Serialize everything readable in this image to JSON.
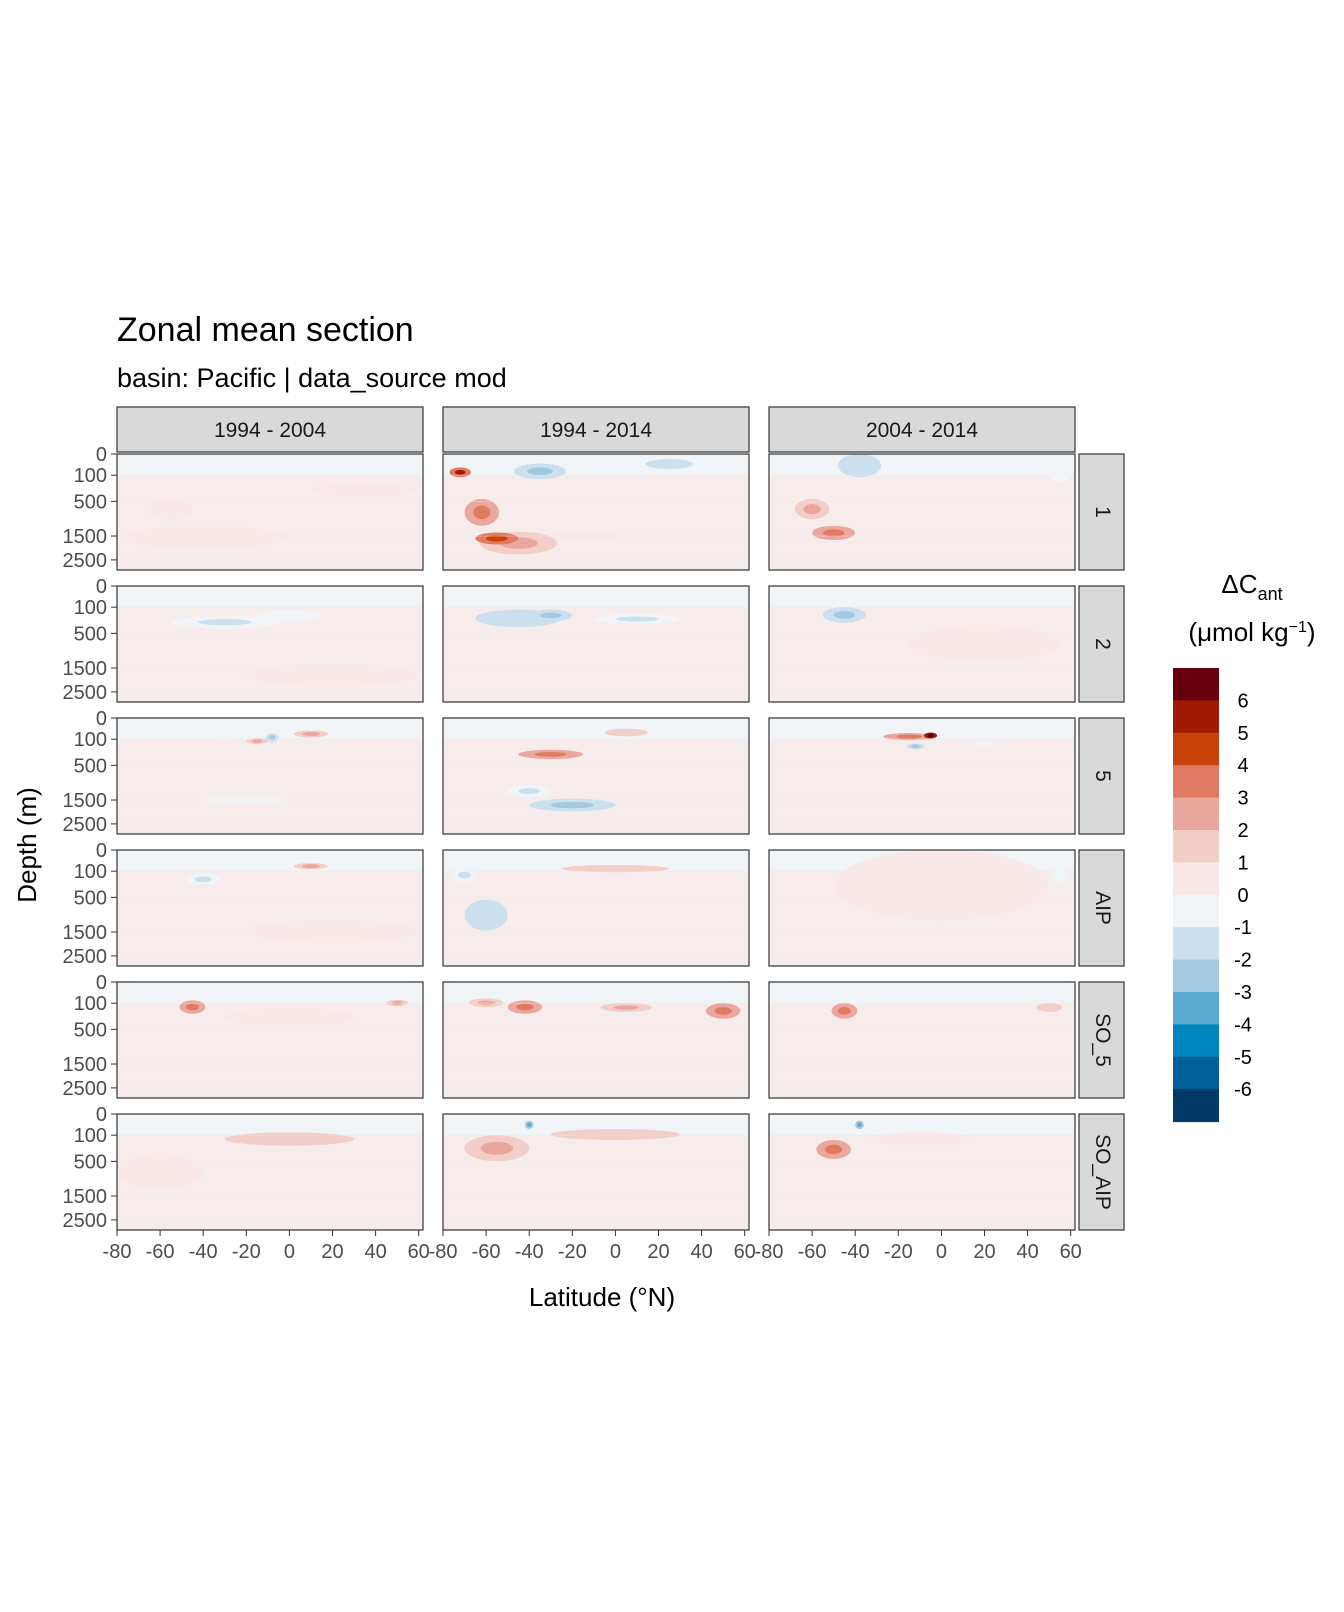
{
  "chart_data": {
    "type": "heatmap",
    "title": "Zonal mean section",
    "subtitle": "basin: Pacific | data_source mod",
    "xlabel": "Latitude (°N)",
    "ylabel": "Depth (m)",
    "x_ticks": [
      -80,
      -60,
      -40,
      -20,
      0,
      20,
      40,
      60
    ],
    "xlim": [
      -80,
      62
    ],
    "y_ticks": [
      0,
      100,
      500,
      1500,
      2500
    ],
    "ylim": [
      0,
      3000
    ],
    "y_scale": "sqrt",
    "columns": [
      "1994 - 2004",
      "1994 - 2014",
      "2004 - 2014"
    ],
    "rows": [
      "1",
      "2",
      "5",
      "AIP",
      "SO_5",
      "SO_AIP"
    ],
    "legend": {
      "title_main": "ΔC",
      "title_sub": "ant",
      "units_main": "(μmol kg",
      "units_sup": "−1",
      "units_close": ")",
      "labels": [
        "6",
        "5",
        "4",
        "3",
        "2",
        "1",
        "0",
        "-1",
        "-2",
        "-3",
        "-4",
        "-5",
        "-6"
      ],
      "colors": [
        "#67000d",
        "#a31a04",
        "#c84309",
        "#e07a63",
        "#eaa79e",
        "#f3cec9",
        "#f8e9e8",
        "#f0f4f7",
        "#ccdfee",
        "#a3c9e1",
        "#5aaad0",
        "#0086bf",
        "#005e99",
        "#003966"
      ],
      "placement": "right"
    },
    "background_color": "#f0f4f7",
    "panels": [
      {
        "row": "1",
        "col": "1994 - 2004",
        "background": 0.3,
        "features": [
          {
            "lat": -40,
            "depth": 1600,
            "v": 0.6,
            "w": 36,
            "h": 900
          },
          {
            "lat": -20,
            "depth": 1500,
            "v": 0.45,
            "w": 30,
            "h": 200
          },
          {
            "lat": -55,
            "depth": 700,
            "v": 0.5,
            "w": 10,
            "h": 500
          },
          {
            "lat": 10,
            "depth": 30,
            "v": -0.6,
            "w": 6,
            "h": 60
          },
          {
            "lat": 35,
            "depth": 300,
            "v": 0.3,
            "w": 25,
            "h": 200
          }
        ]
      },
      {
        "row": "1",
        "col": "1994 - 2014",
        "background": 0.3,
        "features": [
          {
            "lat": -72,
            "depth": 80,
            "v": 3.5,
            "w": 5,
            "h": 80
          },
          {
            "lat": -55,
            "depth": 1600,
            "v": 3.0,
            "w": 10,
            "h": 450
          },
          {
            "lat": -62,
            "depth": 800,
            "v": 2.0,
            "w": 8,
            "h": 700
          },
          {
            "lat": -45,
            "depth": 1800,
            "v": 1.8,
            "w": 18,
            "h": 900
          },
          {
            "lat": -20,
            "depth": 1500,
            "v": 0.8,
            "w": 30,
            "h": 200
          },
          {
            "lat": -35,
            "depth": 80,
            "v": -1.8,
            "w": 12,
            "h": 120
          },
          {
            "lat": 25,
            "depth": 40,
            "v": -1.0,
            "w": 22,
            "h": 100
          }
        ]
      },
      {
        "row": "1",
        "col": "2004 - 2014",
        "background": 0.3,
        "features": [
          {
            "lat": -50,
            "depth": 1400,
            "v": 2.0,
            "w": 10,
            "h": 500
          },
          {
            "lat": -60,
            "depth": 700,
            "v": 1.5,
            "w": 8,
            "h": 500
          },
          {
            "lat": -38,
            "depth": 60,
            "v": -1.2,
            "w": 10,
            "h": 120
          },
          {
            "lat": 55,
            "depth": 80,
            "v": -0.8,
            "w": 6,
            "h": 200
          }
        ]
      },
      {
        "row": "2",
        "col": "1994 - 2004",
        "background": 0.3,
        "features": [
          {
            "lat": -30,
            "depth": 300,
            "v": -1.0,
            "w": 25,
            "h": 200
          },
          {
            "lat": 0,
            "depth": 200,
            "v": -0.8,
            "w": 15,
            "h": 150
          },
          {
            "lat": 20,
            "depth": 1800,
            "v": 0.3,
            "w": 40,
            "h": 900
          }
        ]
      },
      {
        "row": "2",
        "col": "1994 - 2014",
        "background": 0.3,
        "features": [
          {
            "lat": -30,
            "depth": 200,
            "v": -2.0,
            "w": 10,
            "h": 150
          },
          {
            "lat": -45,
            "depth": 250,
            "v": -1.2,
            "w": 20,
            "h": 250
          },
          {
            "lat": 10,
            "depth": 250,
            "v": -1.0,
            "w": 20,
            "h": 150
          }
        ]
      },
      {
        "row": "2",
        "col": "2004 - 2014",
        "background": 0.3,
        "features": [
          {
            "lat": -45,
            "depth": 200,
            "v": -1.5,
            "w": 10,
            "h": 200
          },
          {
            "lat": 20,
            "depth": 800,
            "v": 0.4,
            "w": 35,
            "h": 900
          }
        ]
      },
      {
        "row": "5",
        "col": "1994 - 2004",
        "background": 0.3,
        "features": [
          {
            "lat": -8,
            "depth": 90,
            "v": -1.8,
            "w": 3,
            "h": 80
          },
          {
            "lat": -15,
            "depth": 120,
            "v": 1.5,
            "w": 5,
            "h": 60
          },
          {
            "lat": 10,
            "depth": 60,
            "v": 1.5,
            "w": 8,
            "h": 50
          },
          {
            "lat": -20,
            "depth": 1500,
            "v": -0.9,
            "w": 20,
            "h": 60
          },
          {
            "lat": -30,
            "depth": 80,
            "v": -0.8,
            "w": 5,
            "h": 40
          }
        ]
      },
      {
        "row": "5",
        "col": "1994 - 2014",
        "background": 0.3,
        "features": [
          {
            "lat": -30,
            "depth": 300,
            "v": 2.0,
            "w": 15,
            "h": 150
          },
          {
            "lat": -20,
            "depth": 1700,
            "v": -1.5,
            "w": 20,
            "h": 500
          },
          {
            "lat": -40,
            "depth": 1200,
            "v": -1.0,
            "w": 10,
            "h": 400
          },
          {
            "lat": 5,
            "depth": 50,
            "v": 1.2,
            "w": 10,
            "h": 50
          }
        ]
      },
      {
        "row": "5",
        "col": "2004 - 2014",
        "background": 0.3,
        "features": [
          {
            "lat": -5,
            "depth": 70,
            "v": 5.0,
            "w": 3,
            "h": 40
          },
          {
            "lat": -15,
            "depth": 80,
            "v": 2.0,
            "w": 12,
            "h": 60
          },
          {
            "lat": -12,
            "depth": 180,
            "v": -2.0,
            "w": 4,
            "h": 50
          },
          {
            "lat": 20,
            "depth": 150,
            "v": -0.8,
            "w": 5,
            "h": 50
          }
        ]
      },
      {
        "row": "AIP",
        "col": "1994 - 2004",
        "background": 0.25,
        "features": [
          {
            "lat": -40,
            "depth": 200,
            "v": -1.0,
            "w": 8,
            "h": 150
          },
          {
            "lat": 10,
            "depth": 60,
            "v": 1.5,
            "w": 8,
            "h": 40
          },
          {
            "lat": 20,
            "depth": 1500,
            "v": 0.3,
            "w": 40,
            "h": 800
          }
        ]
      },
      {
        "row": "AIP",
        "col": "1994 - 2014",
        "background": 0.3,
        "features": [
          {
            "lat": -60,
            "depth": 1000,
            "v": -1.2,
            "w": 10,
            "h": 900
          },
          {
            "lat": 0,
            "depth": 80,
            "v": 1.2,
            "w": 25,
            "h": 60
          },
          {
            "lat": -70,
            "depth": 150,
            "v": -1.0,
            "w": 6,
            "h": 150
          }
        ]
      },
      {
        "row": "AIP",
        "col": "2004 - 2014",
        "background": 0.3,
        "features": [
          {
            "lat": 0,
            "depth": 500,
            "v": 0.5,
            "w": 50,
            "h": 1200
          },
          {
            "lat": 55,
            "depth": 150,
            "v": -0.8,
            "w": 4,
            "h": 200
          }
        ]
      },
      {
        "row": "SO_5",
        "col": "1994 - 2004",
        "background": 0.3,
        "features": [
          {
            "lat": -45,
            "depth": 150,
            "v": 2.0,
            "w": 6,
            "h": 150
          },
          {
            "lat": 50,
            "depth": 100,
            "v": 1.5,
            "w": 5,
            "h": 60
          },
          {
            "lat": 0,
            "depth": 300,
            "v": 0.6,
            "w": 30,
            "h": 300
          }
        ]
      },
      {
        "row": "SO_5",
        "col": "1994 - 2014",
        "background": 0.3,
        "features": [
          {
            "lat": -42,
            "depth": 150,
            "v": 2.5,
            "w": 8,
            "h": 150
          },
          {
            "lat": 5,
            "depth": 150,
            "v": 1.5,
            "w": 12,
            "h": 100
          },
          {
            "lat": 50,
            "depth": 200,
            "v": 2.0,
            "w": 8,
            "h": 200
          },
          {
            "lat": -60,
            "depth": 100,
            "v": 1.5,
            "w": 8,
            "h": 80
          }
        ]
      },
      {
        "row": "SO_5",
        "col": "2004 - 2014",
        "background": 0.3,
        "features": [
          {
            "lat": -45,
            "depth": 200,
            "v": 2.0,
            "w": 6,
            "h": 200
          },
          {
            "lat": 50,
            "depth": 150,
            "v": 1.0,
            "w": 6,
            "h": 100
          }
        ]
      },
      {
        "row": "SO_AIP",
        "col": "1994 - 2004",
        "background": 0.3,
        "features": [
          {
            "lat": 0,
            "depth": 150,
            "v": 1.0,
            "w": 30,
            "h": 150
          },
          {
            "lat": -60,
            "depth": 800,
            "v": 0.5,
            "w": 20,
            "h": 900
          }
        ]
      },
      {
        "row": "SO_AIP",
        "col": "1994 - 2014",
        "background": 0.3,
        "features": [
          {
            "lat": -55,
            "depth": 300,
            "v": 1.8,
            "w": 15,
            "h": 400
          },
          {
            "lat": -40,
            "depth": 30,
            "v": -2.5,
            "w": 2,
            "h": 40
          },
          {
            "lat": 0,
            "depth": 100,
            "v": 1.2,
            "w": 30,
            "h": 100
          }
        ]
      },
      {
        "row": "SO_AIP",
        "col": "2004 - 2014",
        "background": 0.3,
        "features": [
          {
            "lat": -50,
            "depth": 300,
            "v": 2.0,
            "w": 8,
            "h": 300
          },
          {
            "lat": -38,
            "depth": 30,
            "v": -2.5,
            "w": 2,
            "h": 40
          },
          {
            "lat": -10,
            "depth": 150,
            "v": 0.8,
            "w": 25,
            "h": 150
          }
        ]
      }
    ]
  }
}
